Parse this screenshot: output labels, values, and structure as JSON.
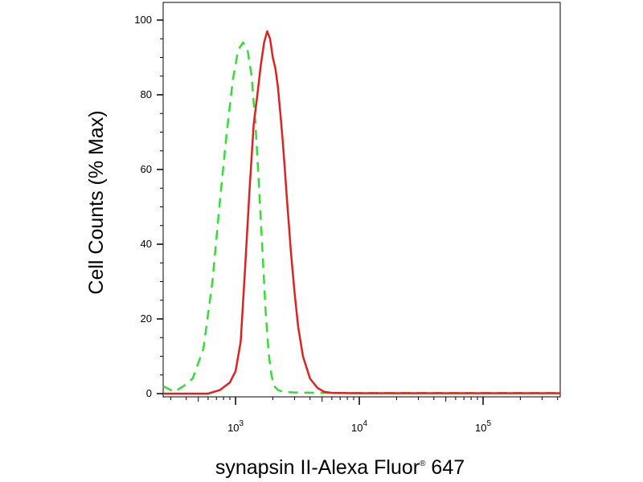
{
  "chart_data": {
    "type": "line",
    "title": "",
    "xlabel": "synapsin II-Alexa Fluor",
    "xlabel_mark": "®",
    "xlabel_suffix": " 647",
    "ylabel": "Cell Counts (% Max)",
    "x_scale": "log",
    "xlim": [
      260,
      420000
    ],
    "ylim": [
      0,
      100
    ],
    "grid": false,
    "legend": "none",
    "x_ticks": [
      {
        "value": 1000,
        "base": "10",
        "exp": "3"
      },
      {
        "value": 10000,
        "base": "10",
        "exp": "4"
      },
      {
        "value": 100000,
        "base": "10",
        "exp": "5"
      }
    ],
    "y_ticks": [
      {
        "value": 0,
        "label": "0"
      },
      {
        "value": 20,
        "label": "20"
      },
      {
        "value": 40,
        "label": "40"
      },
      {
        "value": 60,
        "label": "60"
      },
      {
        "value": 80,
        "label": "80"
      },
      {
        "value": 100,
        "label": "100"
      }
    ],
    "series": [
      {
        "color": "#33dd33",
        "style": "dashed",
        "x": [
          260,
          320,
          380,
          450,
          550,
          650,
          750,
          850,
          950,
          1050,
          1150,
          1250,
          1350,
          1450,
          1550,
          1650,
          1750,
          1850,
          1950,
          2050,
          2200,
          2400,
          3000,
          5000,
          20000,
          100000,
          420000
        ],
        "y": [
          2,
          0.5,
          2,
          4,
          12,
          30,
          52,
          70,
          84,
          92,
          94,
          92,
          85,
          72,
          55,
          38,
          22,
          11,
          5,
          2,
          1,
          0.5,
          0.3,
          0.2,
          0.2,
          0.2,
          0.2
        ]
      },
      {
        "color": "#dd2222",
        "style": "solid",
        "x": [
          260,
          600,
          750,
          900,
          1000,
          1100,
          1200,
          1300,
          1400,
          1500,
          1600,
          1700,
          1800,
          1900,
          2000,
          2100,
          2200,
          2300,
          2400,
          2500,
          2600,
          2700,
          2800,
          3000,
          3200,
          3500,
          4000,
          4600,
          5200,
          6000,
          10000,
          100000,
          420000
        ],
        "y": [
          0,
          0,
          1,
          3,
          6,
          14,
          35,
          55,
          72,
          80,
          88,
          94,
          97,
          95,
          90,
          87,
          82,
          75,
          68,
          60,
          52,
          45,
          38,
          27,
          18,
          10,
          4,
          1.5,
          0.5,
          0.2,
          0.1,
          0.1,
          0.1
        ]
      }
    ]
  }
}
